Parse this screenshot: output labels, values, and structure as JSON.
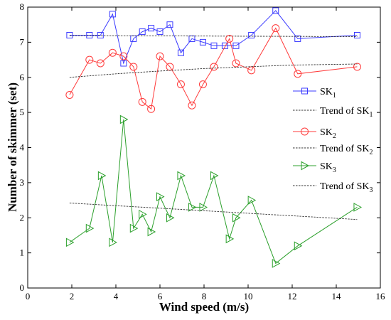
{
  "chart_data": {
    "type": "line",
    "xlabel": "Wind speed (m/s)",
    "ylabel": "Number of skimmer (set)",
    "xlim": [
      0,
      16
    ],
    "ylim": [
      0,
      8
    ],
    "xticks": [
      "0",
      "2",
      "4",
      "6",
      "8",
      "10",
      "12",
      "14",
      "16"
    ],
    "yticks": [
      "0",
      "1",
      "2",
      "3",
      "4",
      "5",
      "6",
      "7",
      "8"
    ],
    "grid": false,
    "legend_position": "right",
    "series": [
      {
        "name": "SK1",
        "label_main": "SK",
        "label_sub": "1",
        "color": "#3b3bff",
        "marker": "square",
        "x": [
          1.9,
          2.8,
          3.3,
          3.85,
          4.35,
          4.8,
          5.2,
          5.6,
          6.0,
          6.45,
          6.95,
          7.45,
          7.95,
          8.45,
          8.95,
          9.45,
          10.15,
          11.25,
          12.25,
          14.95
        ],
        "y": [
          7.2,
          7.2,
          7.2,
          7.8,
          6.4,
          7.1,
          7.3,
          7.4,
          7.3,
          7.5,
          6.7,
          7.1,
          7.0,
          6.9,
          6.9,
          6.9,
          7.2,
          7.9,
          7.1,
          7.2
        ]
      },
      {
        "name": "Trend of SK1",
        "label_main": "Trend of SK",
        "label_sub": "1",
        "color": "#333333",
        "dashed": true,
        "x": [
          1.9,
          14.95
        ],
        "y": [
          7.19,
          7.16
        ]
      },
      {
        "name": "SK2",
        "label_main": "SK",
        "label_sub": "2",
        "color": "#ff3b3b",
        "marker": "circle",
        "x": [
          1.9,
          2.8,
          3.3,
          3.85,
          4.35,
          4.8,
          5.2,
          5.6,
          6.0,
          6.45,
          6.95,
          7.45,
          7.95,
          8.45,
          9.15,
          9.45,
          10.15,
          11.25,
          12.25,
          14.95
        ],
        "y": [
          5.5,
          6.5,
          6.4,
          6.7,
          6.6,
          6.3,
          5.3,
          5.1,
          6.6,
          6.3,
          5.8,
          5.2,
          5.8,
          6.3,
          7.1,
          6.4,
          6.2,
          7.4,
          6.1,
          6.3
        ]
      },
      {
        "name": "Trend of SK2",
        "label_main": "Trend of SK",
        "label_sub": "2",
        "color": "#333333",
        "dashed": true,
        "x": [
          1.9,
          4.0,
          6.0,
          8.0,
          10.0,
          12.0,
          14.95
        ],
        "y": [
          6.0,
          6.1,
          6.18,
          6.25,
          6.3,
          6.35,
          6.38
        ]
      },
      {
        "name": "SK3",
        "label_main": "SK",
        "label_sub": "3",
        "color": "#2ca02c",
        "marker": "triangle-right",
        "x": [
          1.9,
          2.8,
          3.35,
          3.85,
          4.35,
          4.8,
          5.2,
          5.6,
          6.0,
          6.45,
          6.95,
          7.45,
          7.95,
          8.45,
          9.15,
          9.45,
          10.15,
          11.25,
          12.25,
          14.95
        ],
        "y": [
          1.3,
          1.7,
          3.2,
          1.3,
          4.8,
          1.7,
          2.1,
          1.6,
          2.6,
          2.0,
          3.2,
          2.3,
          2.3,
          3.2,
          1.4,
          2.0,
          2.5,
          0.7,
          1.2,
          2.3
        ]
      },
      {
        "name": "Trend of SK3",
        "label_main": "Trend of SK",
        "label_sub": "3",
        "color": "#333333",
        "dashed": true,
        "x": [
          1.9,
          14.95
        ],
        "y": [
          2.42,
          1.95
        ]
      }
    ]
  }
}
